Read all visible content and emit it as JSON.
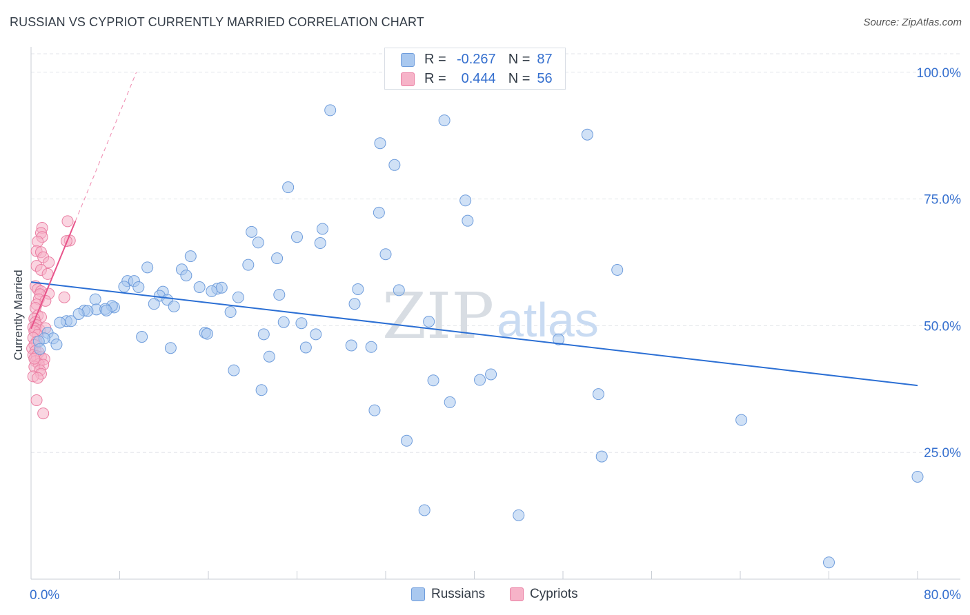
{
  "title": "RUSSIAN VS CYPRIOT CURRENTLY MARRIED CORRELATION CHART",
  "source": "Source: ZipAtlas.com",
  "colors": {
    "russians_fill": "#a9c8ef",
    "russians_stroke": "#6f9ddc",
    "russians_line": "#2b6fd4",
    "cypriots_fill": "#f6b3c8",
    "cypriots_stroke": "#ea7fa3",
    "cypriots_line": "#e8538a",
    "axis_text": "#3670cf",
    "grid": "#e3e6ea"
  },
  "legend_top": {
    "rows": [
      {
        "r_label": "R =",
        "r_value": "-0.267",
        "n_label": "N =",
        "n_value": "87"
      },
      {
        "r_label": "R =",
        "r_value": "0.444",
        "n_label": "N =",
        "n_value": "56"
      }
    ]
  },
  "legend_bottom": {
    "russians": "Russians",
    "cypriots": "Cypriots"
  },
  "watermark": {
    "zip": "ZIP",
    "atlas": "atlas"
  },
  "chart_data": {
    "type": "scatter",
    "title": "RUSSIAN VS CYPRIOT CURRENTLY MARRIED CORRELATION CHART",
    "xlabel": "",
    "ylabel": "Currently Married",
    "xlim": [
      0,
      80
    ],
    "ylim": [
      0,
      105
    ],
    "x_tick_labels": [
      "0.0%",
      "80.0%"
    ],
    "y_tick_labels": [
      {
        "value": 25,
        "label": "25.0%"
      },
      {
        "value": 50,
        "label": "50.0%"
      },
      {
        "value": 75,
        "label": "75.0%"
      },
      {
        "value": 100,
        "label": "100.0%"
      }
    ],
    "series": [
      {
        "name": "Russians",
        "r": -0.267,
        "n": 87,
        "trend": {
          "x": [
            0,
            80
          ],
          "y": [
            58.6,
            38.2
          ],
          "dashed_extension": false
        },
        "points": [
          [
            27,
            92.5
          ],
          [
            37.3,
            90.5
          ],
          [
            31.5,
            86
          ],
          [
            50.2,
            87.7
          ],
          [
            32.8,
            81.7
          ],
          [
            23.2,
            77.3
          ],
          [
            39.2,
            74.7
          ],
          [
            31.4,
            72.3
          ],
          [
            39.4,
            70.7
          ],
          [
            19.9,
            68.5
          ],
          [
            26.3,
            69.1
          ],
          [
            24,
            67.5
          ],
          [
            20.5,
            66.4
          ],
          [
            26.1,
            66.3
          ],
          [
            22.2,
            63.3
          ],
          [
            32,
            64.1
          ],
          [
            14.4,
            63.7
          ],
          [
            19.6,
            62
          ],
          [
            10.5,
            61.5
          ],
          [
            13.6,
            61.1
          ],
          [
            14,
            59.9
          ],
          [
            52.9,
            61
          ],
          [
            8.7,
            58.8
          ],
          [
            9.3,
            58.8
          ],
          [
            8.4,
            57.7
          ],
          [
            9.7,
            57.6
          ],
          [
            15.2,
            57.6
          ],
          [
            16.8,
            57.3
          ],
          [
            17.2,
            57.5
          ],
          [
            16.3,
            56.8
          ],
          [
            29.5,
            57.2
          ],
          [
            33.2,
            57
          ],
          [
            11.9,
            56.7
          ],
          [
            11.6,
            55.9
          ],
          [
            22.4,
            56.1
          ],
          [
            18.7,
            55.6
          ],
          [
            5.8,
            55.2
          ],
          [
            12.3,
            55.1
          ],
          [
            11.1,
            54.3
          ],
          [
            12.9,
            53.8
          ],
          [
            29.2,
            54.3
          ],
          [
            7.5,
            53.6
          ],
          [
            7.3,
            53.9
          ],
          [
            5.9,
            53.2
          ],
          [
            6.7,
            53.3
          ],
          [
            4.8,
            53
          ],
          [
            5.1,
            52.9
          ],
          [
            4.3,
            52.3
          ],
          [
            18,
            52.7
          ],
          [
            6.8,
            53
          ],
          [
            3.2,
            50.9
          ],
          [
            3.6,
            50.9
          ],
          [
            2.6,
            50.6
          ],
          [
            22.8,
            50.7
          ],
          [
            24.4,
            50.5
          ],
          [
            35.9,
            50.8
          ],
          [
            15.7,
            48.6
          ],
          [
            15.9,
            48.4
          ],
          [
            21,
            48.3
          ],
          [
            25.7,
            48.3
          ],
          [
            10,
            47.8
          ],
          [
            1.5,
            48.6
          ],
          [
            2,
            47.5
          ],
          [
            1.2,
            47.5
          ],
          [
            0.7,
            46.9
          ],
          [
            2.3,
            46.3
          ],
          [
            47.6,
            47.3
          ],
          [
            28.9,
            46.1
          ],
          [
            30.7,
            45.8
          ],
          [
            12.6,
            45.6
          ],
          [
            24.8,
            45.7
          ],
          [
            0.8,
            45.4
          ],
          [
            21.5,
            43.9
          ],
          [
            18.3,
            41.2
          ],
          [
            41.5,
            40.4
          ],
          [
            40.5,
            39.3
          ],
          [
            36.3,
            39.2
          ],
          [
            20.8,
            37.3
          ],
          [
            51.2,
            36.5
          ],
          [
            37.8,
            34.9
          ],
          [
            31,
            33.3
          ],
          [
            64.1,
            31.4
          ],
          [
            33.9,
            27.3
          ],
          [
            51.5,
            24.2
          ],
          [
            80,
            20.2
          ],
          [
            35.5,
            13.6
          ],
          [
            44,
            12.6
          ],
          [
            72,
            3.3
          ]
        ]
      },
      {
        "name": "Cypriots",
        "r": 0.444,
        "n": 56,
        "trend": {
          "x": [
            0,
            4
          ],
          "y": [
            49.4,
            70.6
          ],
          "dashed_extension": true,
          "dashed_to": [
            9.5,
            100
          ]
        },
        "points": [
          [
            3.3,
            70.6
          ],
          [
            1,
            69.3
          ],
          [
            0.9,
            68.3
          ],
          [
            1,
            67.5
          ],
          [
            3.5,
            66.8
          ],
          [
            3.2,
            66.7
          ],
          [
            0.6,
            66.6
          ],
          [
            0.5,
            64.7
          ],
          [
            0.9,
            64.5
          ],
          [
            1.1,
            63.5
          ],
          [
            1.6,
            62.5
          ],
          [
            0.5,
            61.8
          ],
          [
            0.9,
            61
          ],
          [
            1.5,
            60.2
          ],
          [
            0.4,
            57.8
          ],
          [
            0.6,
            57.2
          ],
          [
            0.9,
            56.8
          ],
          [
            1.6,
            56.3
          ],
          [
            0.8,
            56.2
          ],
          [
            3,
            55.6
          ],
          [
            0.7,
            55.2
          ],
          [
            1.3,
            54.9
          ],
          [
            0.5,
            54.2
          ],
          [
            0.4,
            53.5
          ],
          [
            0.6,
            52
          ],
          [
            0.9,
            51.7
          ],
          [
            0.3,
            51.4
          ],
          [
            0.4,
            50.7
          ],
          [
            0.5,
            50.1
          ],
          [
            0.2,
            49.7
          ],
          [
            0.4,
            49.4
          ],
          [
            0.8,
            49.1
          ],
          [
            0.3,
            48.9
          ],
          [
            0.6,
            48.2
          ],
          [
            0.2,
            47.6
          ],
          [
            0.5,
            46.8
          ],
          [
            0.3,
            46.2
          ],
          [
            0.1,
            45.5
          ],
          [
            0.4,
            45
          ],
          [
            0.7,
            44.7
          ],
          [
            0.2,
            44.2
          ],
          [
            0.5,
            44
          ],
          [
            0.9,
            43.8
          ],
          [
            1.2,
            43.4
          ],
          [
            0.4,
            43
          ],
          [
            0.7,
            42.4
          ],
          [
            1.1,
            42.3
          ],
          [
            0.3,
            41.9
          ],
          [
            0.8,
            41.2
          ],
          [
            0.9,
            40.5
          ],
          [
            0.2,
            40
          ],
          [
            0.6,
            39.7
          ],
          [
            0.5,
            35.3
          ],
          [
            1.1,
            32.7
          ],
          [
            0.3,
            43.5
          ],
          [
            1.3,
            49.5
          ]
        ]
      }
    ]
  }
}
